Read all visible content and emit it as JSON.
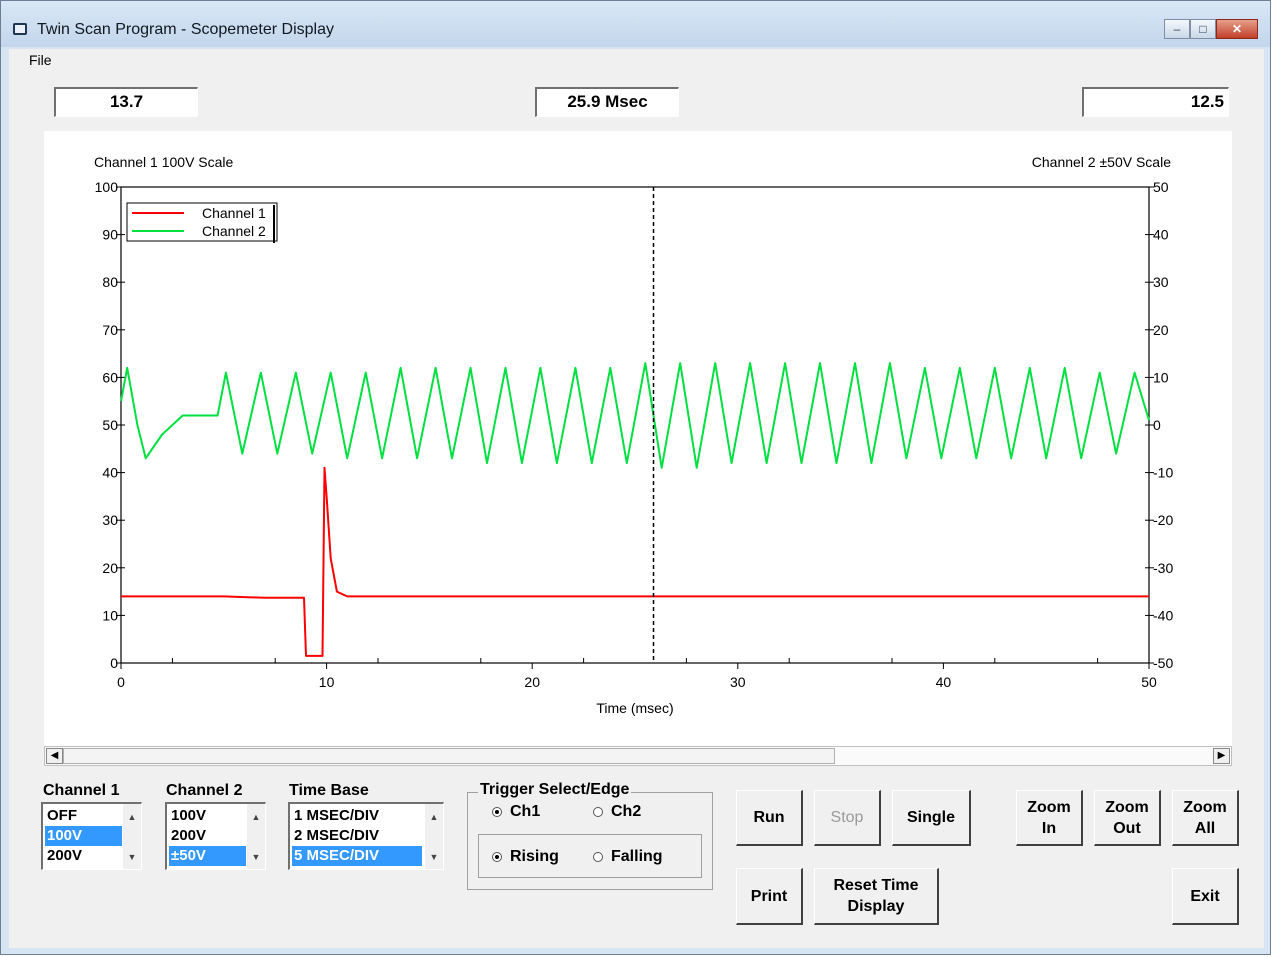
{
  "window": {
    "title": "Twin Scan Program - Scopemeter Display",
    "controls": {
      "minimize": "‒",
      "maximize": "□",
      "close": "✕"
    }
  },
  "menu": {
    "file": "File"
  },
  "readouts": {
    "left": "13.7",
    "center": "25.9 Msec",
    "right": "12.5"
  },
  "chart_data": {
    "type": "line",
    "left_axis_title": "Channel 1 100V Scale",
    "right_axis_title": "Channel 2 ±50V Scale",
    "xlabel": "Time (msec)",
    "xlim": [
      0,
      50
    ],
    "ylim_left": [
      0,
      100
    ],
    "ylim_right": [
      -50,
      50
    ],
    "x_ticks": [
      "0",
      "10",
      "20",
      "30",
      "40",
      "50"
    ],
    "y_left_ticks": [
      "0",
      "10",
      "20",
      "30",
      "40",
      "50",
      "60",
      "70",
      "80",
      "90",
      "100"
    ],
    "y_right_ticks": [
      "-50",
      "-40",
      "-30",
      "-20",
      "-10",
      "0",
      "10",
      "20",
      "30",
      "40",
      "50"
    ],
    "cursor_x": 25.9,
    "legend": {
      "position": "top-left",
      "entries": [
        "Channel 1",
        "Channel 2"
      ]
    },
    "series": [
      {
        "name": "Channel 1",
        "color": "#ff0000",
        "axis": "left",
        "x": [
          0,
          2,
          4,
          5,
          7,
          8.9,
          9.0,
          9.8,
          9.9,
          10.0,
          10.2,
          10.5,
          11,
          15,
          20,
          25,
          30,
          35,
          40,
          45,
          50
        ],
        "y": [
          14,
          14,
          14,
          14,
          13.7,
          13.7,
          1.5,
          1.5,
          41,
          35,
          22,
          15,
          14,
          14,
          14,
          14,
          14,
          14,
          14,
          14,
          14
        ]
      },
      {
        "name": "Channel 2",
        "color": "#00e040",
        "axis": "right",
        "x": [
          0,
          0.3,
          0.8,
          1.2,
          2,
          3,
          4,
          4.7,
          5.1,
          5.9,
          6.8,
          7.6,
          8.5,
          9.3,
          10.2,
          11.0,
          11.9,
          12.7,
          13.6,
          14.4,
          15.3,
          16.1,
          17.0,
          17.8,
          18.7,
          19.5,
          20.4,
          21.2,
          22.1,
          22.9,
          23.8,
          24.6,
          25.5,
          26.3,
          27.2,
          28.0,
          28.9,
          29.7,
          30.6,
          31.4,
          32.3,
          33.1,
          34.0,
          34.8,
          35.7,
          36.5,
          37.4,
          38.2,
          39.1,
          39.9,
          40.8,
          41.6,
          42.5,
          43.3,
          44.2,
          45.0,
          45.9,
          46.7,
          47.6,
          48.4,
          49.3,
          50.0
        ],
        "y": [
          5,
          12,
          0,
          -7,
          -2,
          2,
          2,
          2,
          11,
          -6,
          11,
          -6,
          11,
          -6,
          11,
          -7,
          11,
          -7,
          12,
          -7,
          12,
          -7,
          12,
          -8,
          12,
          -8,
          12,
          -8,
          12,
          -8,
          12,
          -8,
          13,
          -9,
          13,
          -9,
          13,
          -8,
          13,
          -8,
          13,
          -8,
          13,
          -8,
          13,
          -8,
          13,
          -7,
          12,
          -7,
          12,
          -7,
          12,
          -7,
          12,
          -7,
          12,
          -7,
          11,
          -6,
          11,
          1
        ]
      }
    ]
  },
  "controls": {
    "channel1": {
      "label": "Channel 1",
      "items": [
        "OFF",
        "100V",
        "200V"
      ],
      "selected": 1
    },
    "channel2": {
      "label": "Channel 2",
      "items": [
        "100V",
        "200V",
        "±50V"
      ],
      "selected": 2
    },
    "timebase": {
      "label": "Time Base",
      "items": [
        "1 MSEC/DIV",
        "2 MSEC/DIV",
        "5 MSEC/DIV"
      ],
      "selected": 2
    },
    "trigger": {
      "title": "Trigger Select/Edge",
      "ch1": "Ch1",
      "ch2": "Ch2",
      "rising": "Rising",
      "falling": "Falling"
    },
    "buttons": {
      "run": "Run",
      "stop": "Stop",
      "single": "Single",
      "zoom_in_1": "Zoom",
      "zoom_in_2": "In",
      "zoom_out_1": "Zoom",
      "zoom_out_2": "Out",
      "zoom_all_1": "Zoom",
      "zoom_all_2": "All",
      "print": "Print",
      "reset_1": "Reset Time",
      "reset_2": "Display",
      "exit": "Exit"
    },
    "scroll": {
      "left": "◀",
      "right": "▶",
      "up": "▲",
      "down": "▼"
    }
  }
}
